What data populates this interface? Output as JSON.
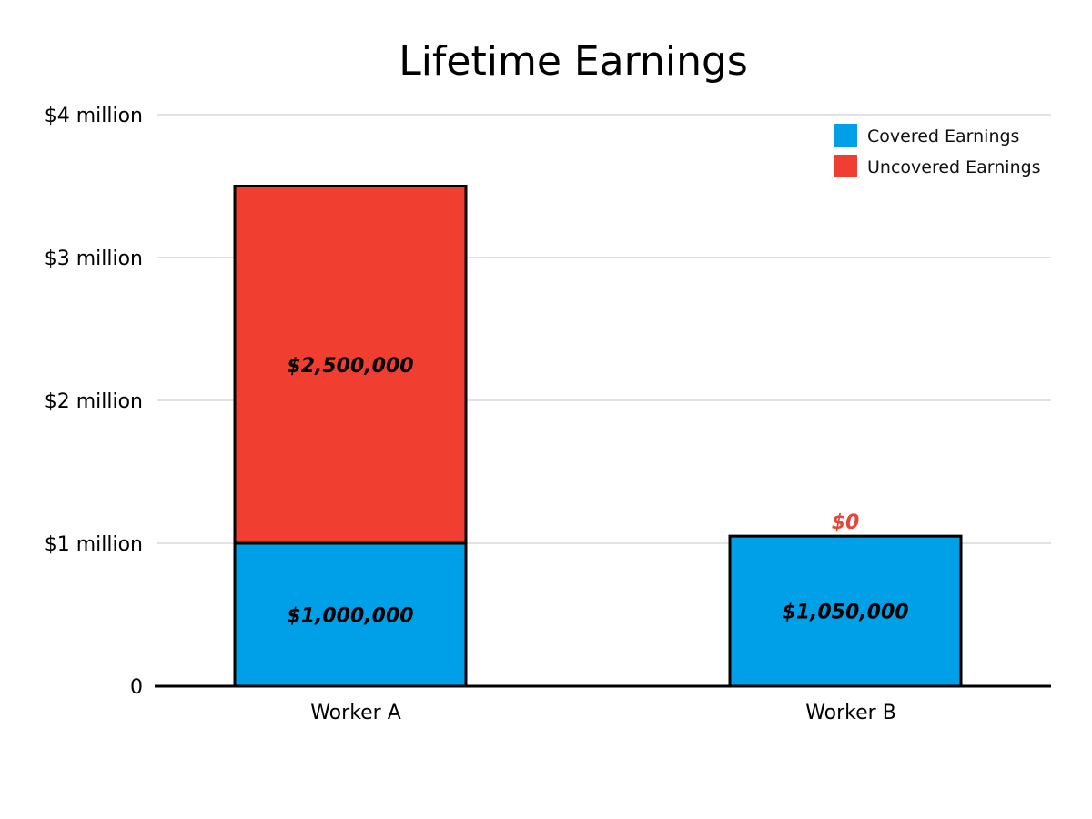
{
  "chart_data": {
    "type": "bar",
    "stacked": true,
    "title": "Lifetime Earnings",
    "xlabel": "",
    "ylabel": "",
    "categories": [
      "Worker A",
      "Worker B"
    ],
    "series": [
      {
        "name": "Covered Earnings",
        "color": "#00a0e8",
        "values": [
          1000000,
          1050000
        ],
        "labels": [
          "$1,000,000",
          "$1,050,000"
        ]
      },
      {
        "name": "Uncovered Earnings",
        "color": "#f03e30",
        "values": [
          2500000,
          0
        ],
        "labels": [
          "$2,500,000",
          "$0"
        ]
      }
    ],
    "ylim": [
      0,
      4000000
    ],
    "yticks": [
      0,
      1000000,
      2000000,
      3000000,
      4000000
    ],
    "ytick_labels": [
      "0",
      "$1 million",
      "$2 million",
      "$3 million",
      "$4 million"
    ],
    "grid": true,
    "legend_position": "top-right",
    "zero_value_label_color": "#e8453a"
  }
}
